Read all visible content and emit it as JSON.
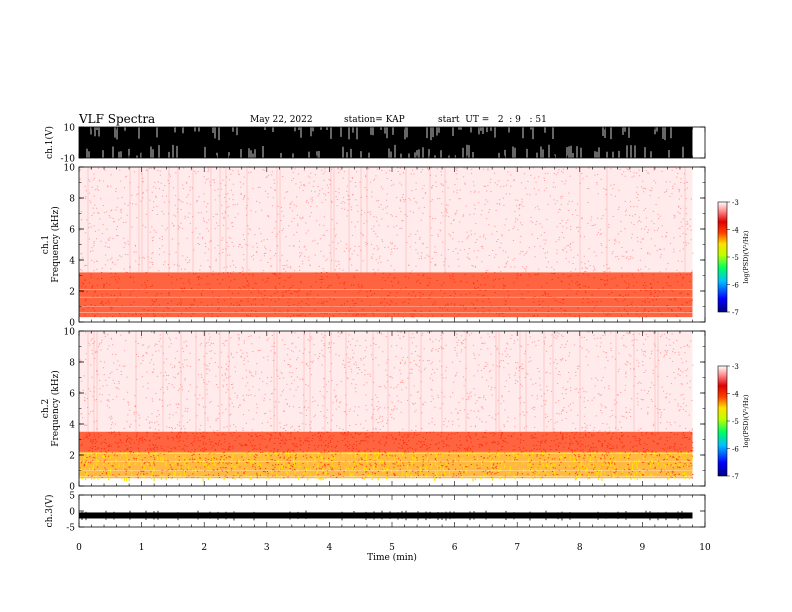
{
  "header": {
    "title": "VLF Spectra",
    "date": "May 22, 2022",
    "station": "station= KAP",
    "start_ut": "start  UT =   2  : 9   : 51"
  },
  "chart_data": [
    {
      "panel": "ch1-waveform",
      "type": "line",
      "ylabel": "ch.1(V)",
      "ylim": [
        -10,
        10
      ],
      "y_ticks": [
        "10",
        "-10"
      ],
      "xlim": [
        0,
        10
      ],
      "data_end_min": 9.8,
      "description_values": {
        "typical_min": -10,
        "typical_max": 10
      }
    },
    {
      "panel": "ch1-spectrogram",
      "type": "heatmap",
      "ylabel_line1": "ch.1",
      "ylabel_line2": "Frequency (kHz)",
      "ylim": [
        0,
        10
      ],
      "y_ticks": [
        "0",
        "2",
        "4",
        "6",
        "8",
        "10"
      ],
      "xlim": [
        0,
        10
      ],
      "data_end_min": 9.8,
      "band_kHz": [
        {
          "from": 0.3,
          "to": 3.2,
          "level": -4.0
        },
        {
          "from": 3.2,
          "to": 10.0,
          "level": -3.3
        }
      ],
      "colorbar": {
        "label": "log(PSD)(V²/Hz)",
        "range": [
          -7,
          -3
        ],
        "ticks": [
          "-3",
          "-4",
          "-5",
          "-6",
          "-7"
        ]
      }
    },
    {
      "panel": "ch2-spectrogram",
      "type": "heatmap",
      "ylabel_line1": "ch.2",
      "ylabel_line2": "Frequency (kHz)",
      "ylim": [
        0,
        10
      ],
      "y_ticks": [
        "0",
        "2",
        "4",
        "6",
        "8",
        "10"
      ],
      "xlim": [
        0,
        10
      ],
      "data_end_min": 9.8,
      "band_kHz": [
        {
          "from": 0.5,
          "to": 2.2,
          "level": -4.5
        },
        {
          "from": 2.2,
          "to": 3.5,
          "level": -4.0
        },
        {
          "from": 3.5,
          "to": 10.0,
          "level": -3.3
        }
      ],
      "colorbar": {
        "label": "log(PSD)(V²/Hz)",
        "range": [
          -7,
          -3
        ],
        "ticks": [
          "-3",
          "-4",
          "-5",
          "-6",
          "-7"
        ]
      }
    },
    {
      "panel": "ch3-waveform",
      "type": "line",
      "ylabel": "ch.3(V)",
      "ylim": [
        -5,
        5
      ],
      "y_ticks": [
        "5",
        "0",
        "-5"
      ],
      "xlim": [
        0,
        10
      ],
      "data_end_min": 9.8,
      "trace_level_V": -1.4,
      "x_ticks": [
        "0",
        "1",
        "2",
        "3",
        "4",
        "5",
        "6",
        "7",
        "8",
        "9",
        "10"
      ],
      "xlabel": "Time (min)"
    }
  ],
  "colors": {
    "colormap": [
      "#000080",
      "#0000ff",
      "#0080ff",
      "#00e0ff",
      "#00ff80",
      "#80ff00",
      "#ffff00",
      "#ffa000",
      "#ff3000",
      "#e00000",
      "#ff9090",
      "#ffffff"
    ]
  }
}
